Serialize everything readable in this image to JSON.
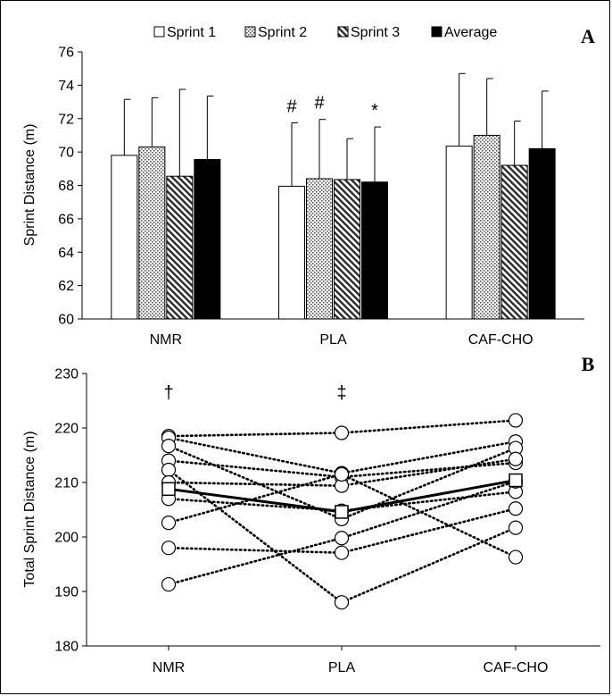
{
  "chart_data": [
    {
      "panel_label": "A",
      "type": "bar",
      "ylabel": "Sprint Distance (m)",
      "ylim": [
        60,
        76
      ],
      "yticks": [
        60,
        62,
        64,
        66,
        68,
        70,
        72,
        74,
        76
      ],
      "categories": [
        "NMR",
        "PLA",
        "CAF-CHO"
      ],
      "series": [
        {
          "name": "Sprint 1",
          "pattern": "white",
          "values": [
            69.8,
            67.95,
            70.35
          ],
          "errors": [
            3.35,
            3.8,
            4.35
          ]
        },
        {
          "name": "Sprint 2",
          "pattern": "dots",
          "values": [
            70.3,
            68.4,
            71.0
          ],
          "errors": [
            2.95,
            3.55,
            3.4
          ]
        },
        {
          "name": "Sprint 3",
          "pattern": "hatch",
          "values": [
            68.55,
            68.35,
            69.2
          ],
          "errors": [
            5.2,
            2.45,
            2.65
          ]
        },
        {
          "name": "Average",
          "pattern": "black",
          "values": [
            69.55,
            68.2,
            70.2
          ],
          "errors": [
            3.8,
            3.3,
            3.45
          ]
        }
      ],
      "annotations": [
        {
          "text": "#",
          "category": "PLA",
          "series": "Sprint 1"
        },
        {
          "text": "#",
          "category": "PLA",
          "series": "Sprint 2"
        },
        {
          "text": "*",
          "category": "PLA",
          "series": "Average"
        }
      ]
    },
    {
      "panel_label": "B",
      "type": "line",
      "ylabel": "Total Sprint Distance (m)",
      "ylim": [
        180,
        230
      ],
      "yticks": [
        180,
        190,
        200,
        210,
        220,
        230
      ],
      "categories": [
        "NMR",
        "PLA",
        "CAF-CHO"
      ],
      "individual_series": [
        [
          218.5,
          219.1,
          221.4
        ],
        [
          218.2,
          211.7,
          217.5
        ],
        [
          216.7,
          203.3,
          216.3
        ],
        [
          214.0,
          211.0,
          213.6
        ],
        [
          212.3,
          188.0,
          201.7
        ],
        [
          210.0,
          209.4,
          214.3
        ],
        [
          207.0,
          204.8,
          208.3
        ],
        [
          202.6,
          211.5,
          196.3
        ],
        [
          198.0,
          197.1,
          205.2
        ],
        [
          191.3,
          199.8,
          210.2
        ]
      ],
      "mean_series": {
        "name": "Mean",
        "values": [
          208.8,
          204.6,
          210.4
        ]
      },
      "annotations": [
        {
          "text": "†",
          "category": "NMR"
        },
        {
          "text": "‡",
          "category": "PLA"
        }
      ]
    }
  ]
}
